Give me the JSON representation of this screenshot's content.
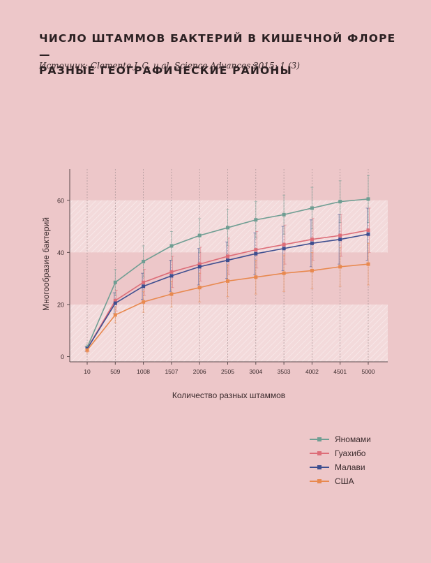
{
  "page": {
    "title_line1": "Число штаммов бактерий в кишечной флоре —",
    "title_line2": "разные географические районы",
    "source": "Источник: Clemente J. C. и al. Science Advances 2015; 1 (3)"
  },
  "colors": {
    "background": "#edc7c9",
    "band": "#f3dadb",
    "Яномами": "#6f9e93",
    "Гуахибо": "#dd6d78",
    "Малави": "#3e4e8f",
    "США": "#e8894f"
  },
  "chart_data": {
    "type": "line",
    "title": "",
    "xlabel": "Количество разных штаммов",
    "ylabel": "Многообразие бактерий",
    "x": [
      10,
      509,
      1008,
      1507,
      2006,
      2505,
      3004,
      3503,
      4002,
      4501,
      5000
    ],
    "x_tick_labels": [
      "10",
      "509",
      "1008",
      "1507",
      "2006",
      "2505",
      "3004",
      "3503",
      "4002",
      "4501",
      "5000"
    ],
    "y_ticks": [
      0,
      20,
      40,
      60
    ],
    "ylim": [
      -2,
      72
    ],
    "grid": true,
    "legend_position": "bottom-right",
    "series": [
      {
        "name": "Яномами",
        "values": [
          3.5,
          28.5,
          36.5,
          42.5,
          46.5,
          49.5,
          52.5,
          54.5,
          57,
          59.5,
          60.5
        ],
        "errors": [
          1,
          5,
          6,
          5.5,
          6.5,
          7,
          7,
          7.5,
          8,
          8,
          9
        ]
      },
      {
        "name": "Гуахибо",
        "values": [
          3,
          21.5,
          28.5,
          32.5,
          35.5,
          38.5,
          41,
          43,
          45,
          46.5,
          48.5
        ],
        "errors": [
          1,
          4,
          5,
          6,
          6.5,
          7,
          7,
          7.5,
          8,
          8,
          8.5
        ]
      },
      {
        "name": "Малави",
        "values": [
          3,
          20.5,
          27,
          31,
          34.5,
          37,
          39.5,
          41.5,
          43.5,
          45,
          47
        ],
        "errors": [
          1,
          4,
          5,
          6,
          7,
          7,
          8,
          8.5,
          9,
          9.5,
          10
        ]
      },
      {
        "name": "США",
        "values": [
          2.5,
          16,
          21,
          24,
          26.5,
          29,
          30.5,
          32,
          33,
          34.5,
          35.5
        ],
        "errors": [
          1,
          3,
          4,
          5,
          5.5,
          6,
          6.5,
          7,
          7,
          7.5,
          8
        ]
      }
    ]
  }
}
